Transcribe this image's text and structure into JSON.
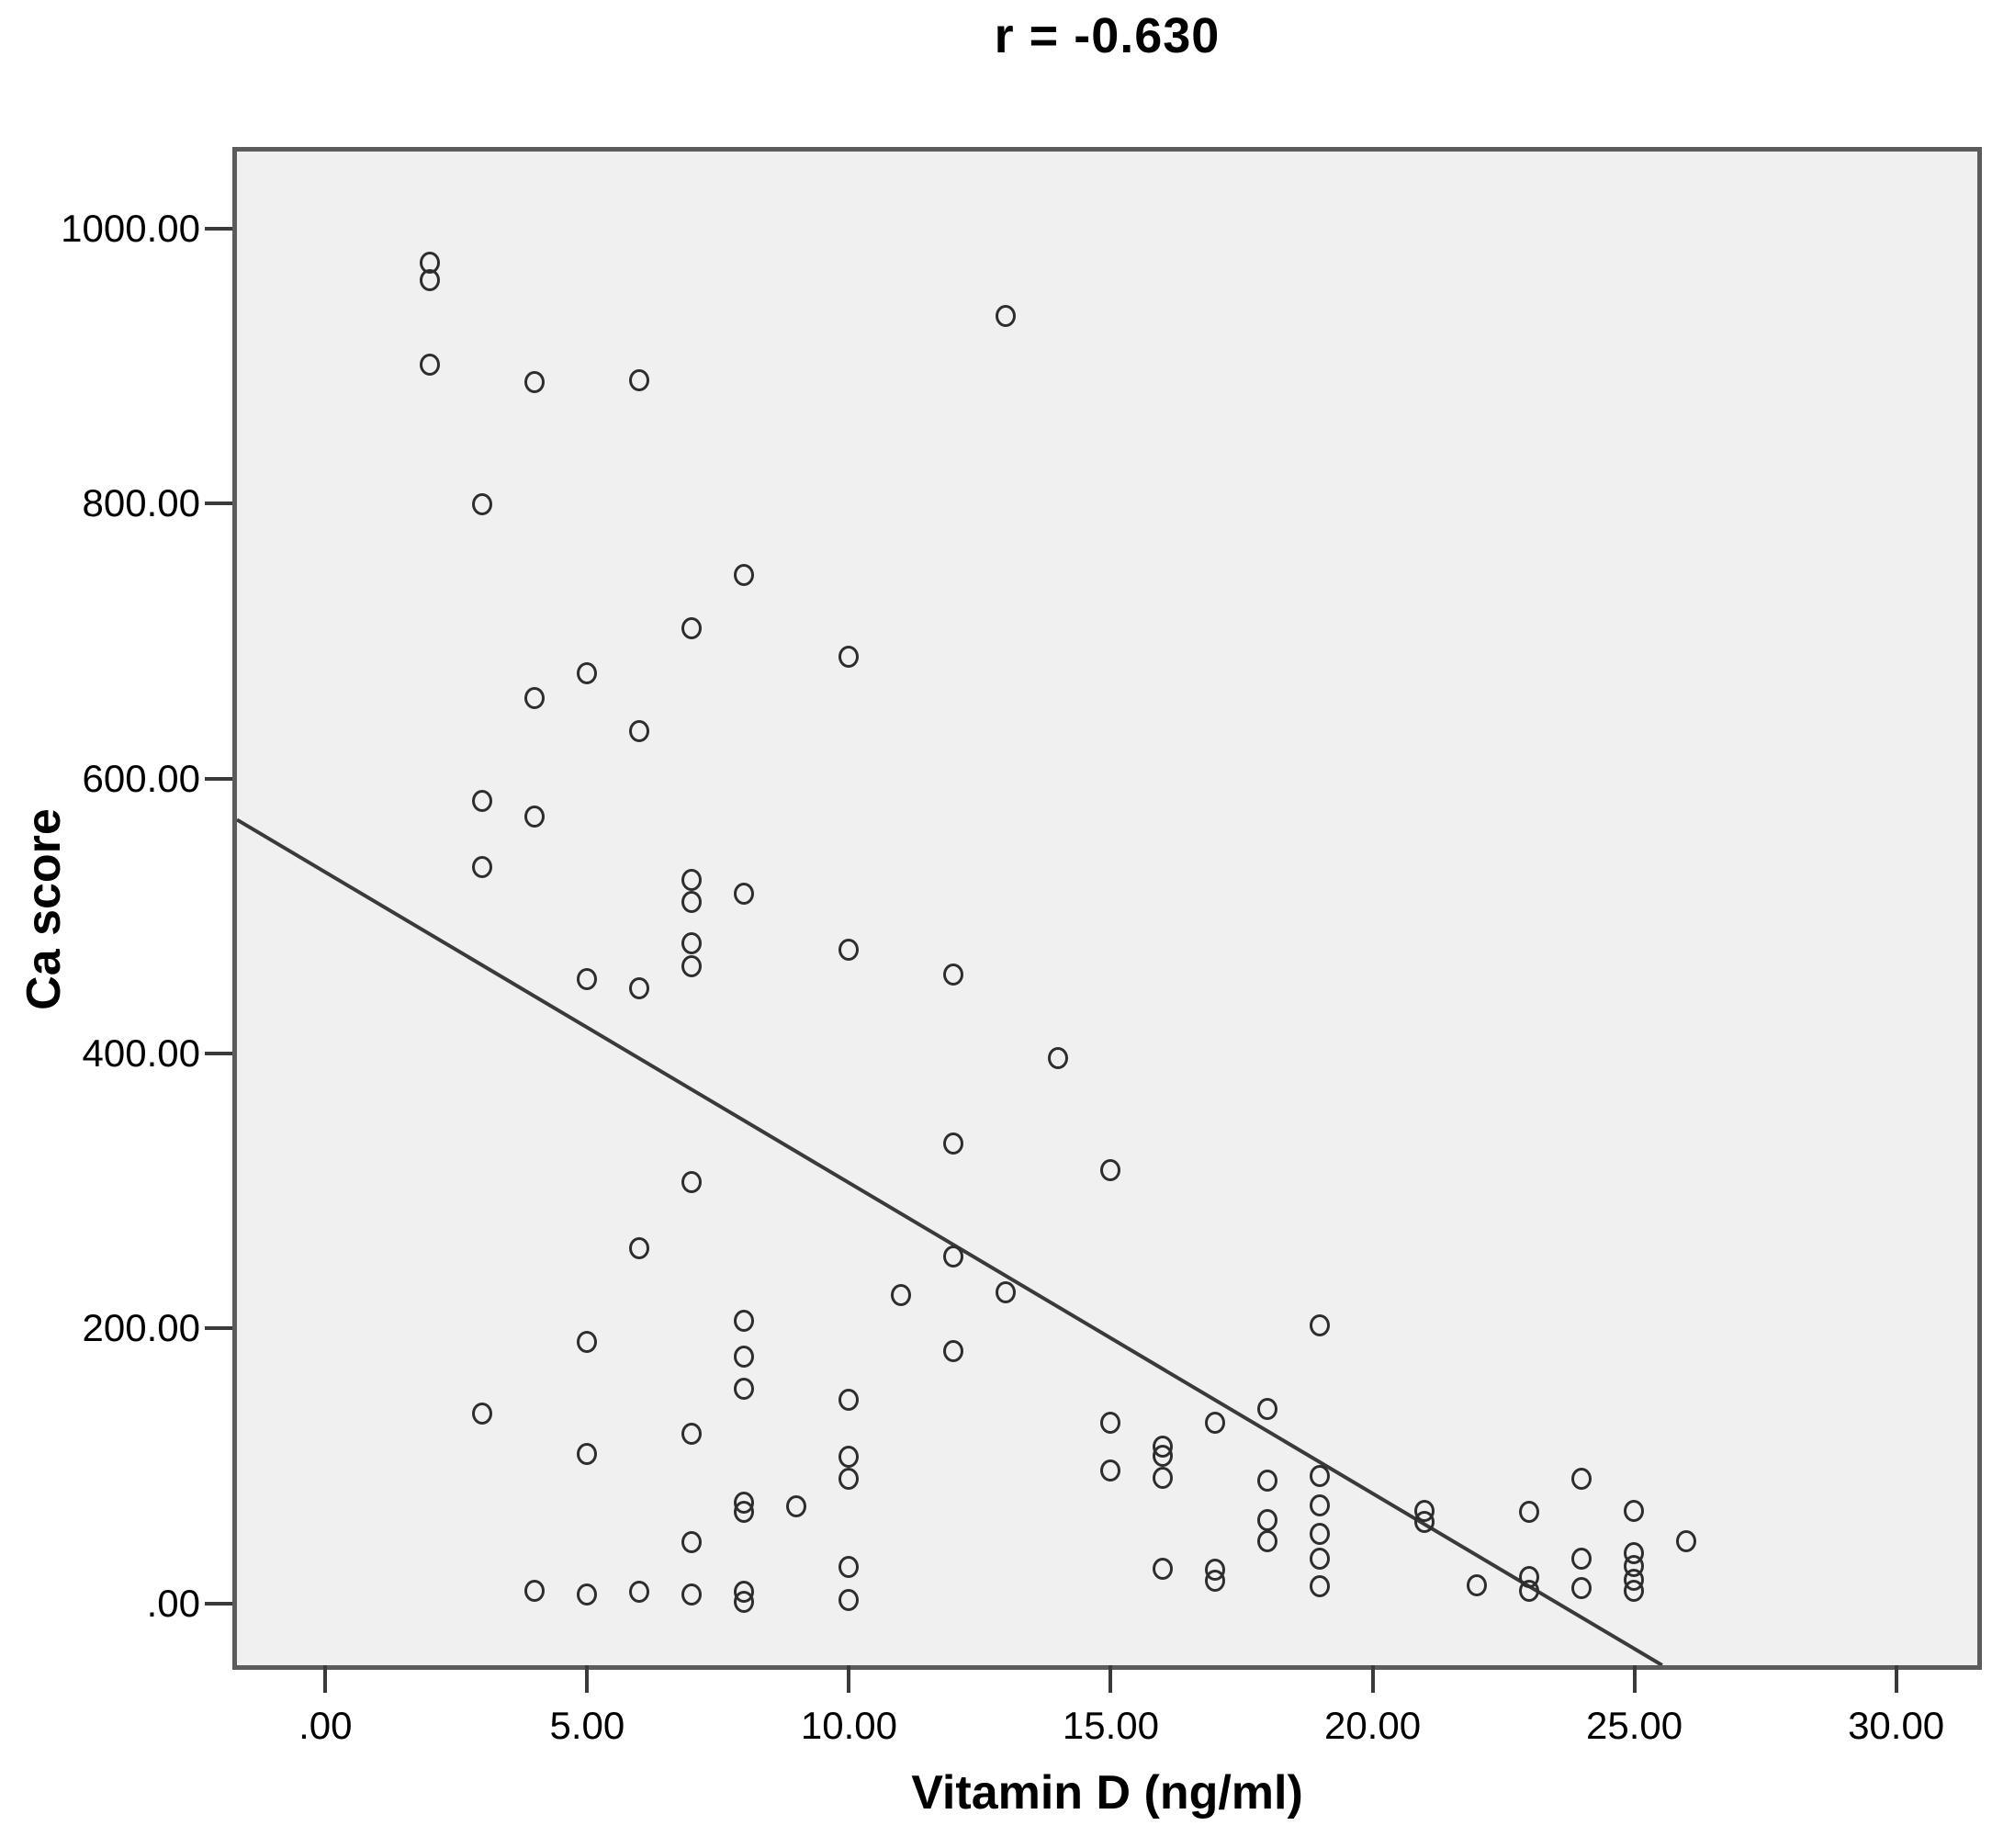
{
  "title": "r = -0.630",
  "chart_data": {
    "type": "scatter",
    "title": "r = -0.630",
    "xlabel": "Vitamin D (ng/ml)",
    "ylabel": "Ca score",
    "xlim": [
      -1.69,
      31.55
    ],
    "ylim": [
      -45,
      1056
    ],
    "grid": false,
    "legend": "none",
    "marker": "open-circle",
    "x_ticks": [
      0,
      5,
      10,
      15,
      20,
      25,
      30
    ],
    "x_tick_labels": [
      ".00",
      "5.00",
      "10.00",
      "15.00",
      "20.00",
      "25.00",
      "30.00"
    ],
    "y_ticks": [
      0,
      200,
      400,
      600,
      800,
      1000
    ],
    "y_tick_labels": [
      ".00",
      "200.00",
      "400.00",
      "600.00",
      "800.00",
      "1000.00"
    ],
    "points": [
      [
        2,
        975
      ],
      [
        2,
        962
      ],
      [
        2,
        901
      ],
      [
        3,
        799
      ],
      [
        4,
        888
      ],
      [
        6,
        889
      ],
      [
        13,
        936
      ],
      [
        8,
        748
      ],
      [
        7,
        709
      ],
      [
        10,
        688
      ],
      [
        5,
        676
      ],
      [
        4,
        658
      ],
      [
        6,
        634
      ],
      [
        3,
        583
      ],
      [
        4,
        572
      ],
      [
        3,
        535
      ],
      [
        7,
        526
      ],
      [
        7,
        510
      ],
      [
        8,
        516
      ],
      [
        7,
        480
      ],
      [
        7,
        463
      ],
      [
        5,
        454
      ],
      [
        6,
        447
      ],
      [
        10,
        475
      ],
      [
        12,
        457
      ],
      [
        14,
        396
      ],
      [
        12,
        334
      ],
      [
        15,
        315
      ],
      [
        7,
        306
      ],
      [
        6,
        258
      ],
      [
        12,
        252
      ],
      [
        13,
        226
      ],
      [
        11,
        224
      ],
      [
        12,
        183
      ],
      [
        19,
        202
      ],
      [
        5,
        190
      ],
      [
        8,
        205
      ],
      [
        8,
        179
      ],
      [
        8,
        156
      ],
      [
        10,
        148
      ],
      [
        3,
        138
      ],
      [
        15,
        131
      ],
      [
        17,
        131
      ],
      [
        18,
        141
      ],
      [
        7,
        123
      ],
      [
        16,
        114
      ],
      [
        16,
        107
      ],
      [
        5,
        108
      ],
      [
        10,
        106
      ],
      [
        15,
        96
      ],
      [
        16,
        91
      ],
      [
        10,
        90
      ],
      [
        18,
        89
      ],
      [
        19,
        92
      ],
      [
        24,
        90
      ],
      [
        8,
        73
      ],
      [
        8,
        66
      ],
      [
        9,
        70
      ],
      [
        19,
        71
      ],
      [
        21,
        67
      ],
      [
        21,
        59
      ],
      [
        23,
        66
      ],
      [
        25,
        67
      ],
      [
        18,
        60
      ],
      [
        19,
        50
      ],
      [
        18,
        45
      ],
      [
        26,
        45
      ],
      [
        7,
        44
      ],
      [
        19,
        32
      ],
      [
        24,
        32
      ],
      [
        25,
        36
      ],
      [
        25,
        27
      ],
      [
        16,
        25
      ],
      [
        17,
        24
      ],
      [
        17,
        16
      ],
      [
        10,
        26
      ],
      [
        22,
        13
      ],
      [
        23,
        19
      ],
      [
        23,
        9
      ],
      [
        25,
        17
      ],
      [
        25,
        9
      ],
      [
        24,
        11
      ],
      [
        19,
        12
      ],
      [
        10,
        2
      ],
      [
        4,
        9
      ],
      [
        5,
        6
      ],
      [
        6,
        8
      ],
      [
        7,
        6
      ],
      [
        8,
        8
      ],
      [
        8,
        1
      ]
    ],
    "trendline": {
      "slope": -22.6,
      "intercept": 532,
      "x1": -1.69,
      "y1": 570,
      "x2": 25.53,
      "y2": -45
    },
    "colors": {
      "marker_stroke": "#2d2d2d",
      "trendline": "#3a3a3a",
      "plot_bg": "#f0f0f0",
      "frame": "#5c5c5c",
      "page_bg": "#ffffff",
      "text": "#000000"
    }
  }
}
